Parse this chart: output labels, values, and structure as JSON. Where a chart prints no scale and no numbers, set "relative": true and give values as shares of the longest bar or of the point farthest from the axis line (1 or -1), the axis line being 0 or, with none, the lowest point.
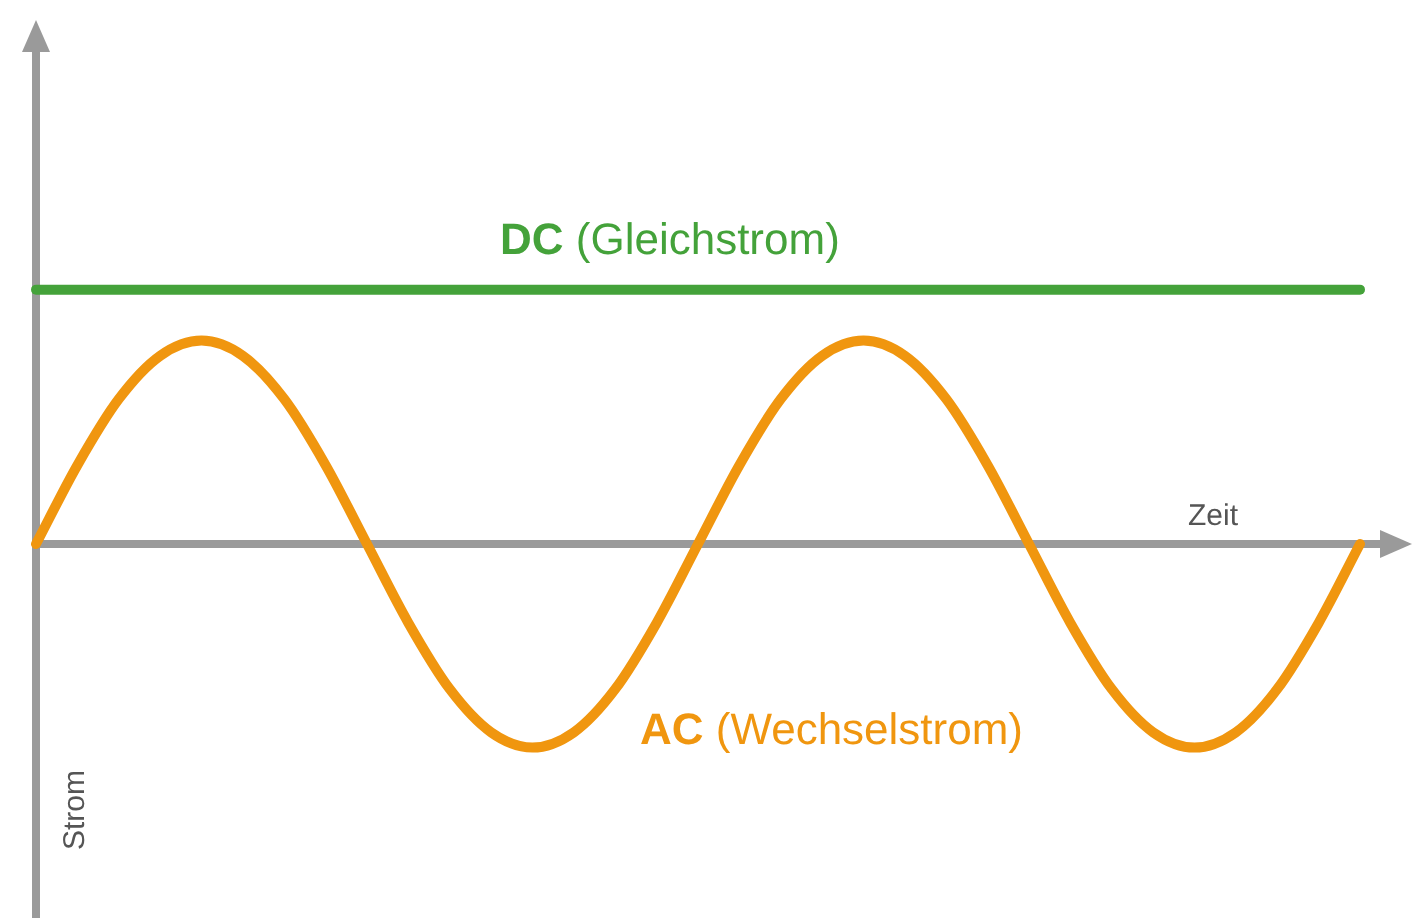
{
  "chart_data": {
    "type": "line",
    "relative": true,
    "xlabel": "Zeit",
    "ylabel": "Strom",
    "legend": false,
    "marker": "none",
    "line_style": "solid",
    "categories": [
      null,
      null,
      null,
      null,
      null,
      null,
      null,
      null,
      null,
      null,
      null,
      null,
      null,
      null,
      null,
      null,
      null,
      null,
      null,
      null,
      null,
      null,
      null,
      null,
      null,
      null,
      null,
      null,
      null,
      null,
      null,
      null,
      null
    ],
    "series": [
      {
        "name": "DC (Gleichstrom)",
        "color": "#44a23a",
        "values": [
          1,
          1,
          1,
          1,
          1,
          1,
          1,
          1,
          1,
          1,
          1,
          1,
          1,
          1,
          1,
          1,
          1,
          1,
          1,
          1,
          1,
          1,
          1,
          1,
          1,
          1,
          1,
          1,
          1,
          1,
          1,
          1,
          1
        ]
      },
      {
        "name": "AC (Wechselstrom)",
        "color": "#f0960f",
        "values": [
          0,
          0.31,
          0.57,
          0.74,
          0.8,
          0.74,
          0.57,
          0.31,
          0,
          -0.31,
          -0.57,
          -0.74,
          -0.8,
          -0.74,
          -0.57,
          -0.31,
          0,
          0.31,
          0.57,
          0.74,
          0.8,
          0.74,
          0.57,
          0.31,
          0,
          -0.31,
          -0.57,
          -0.74,
          -0.8,
          -0.74,
          -0.57,
          -0.31,
          0
        ]
      }
    ]
  }
}
